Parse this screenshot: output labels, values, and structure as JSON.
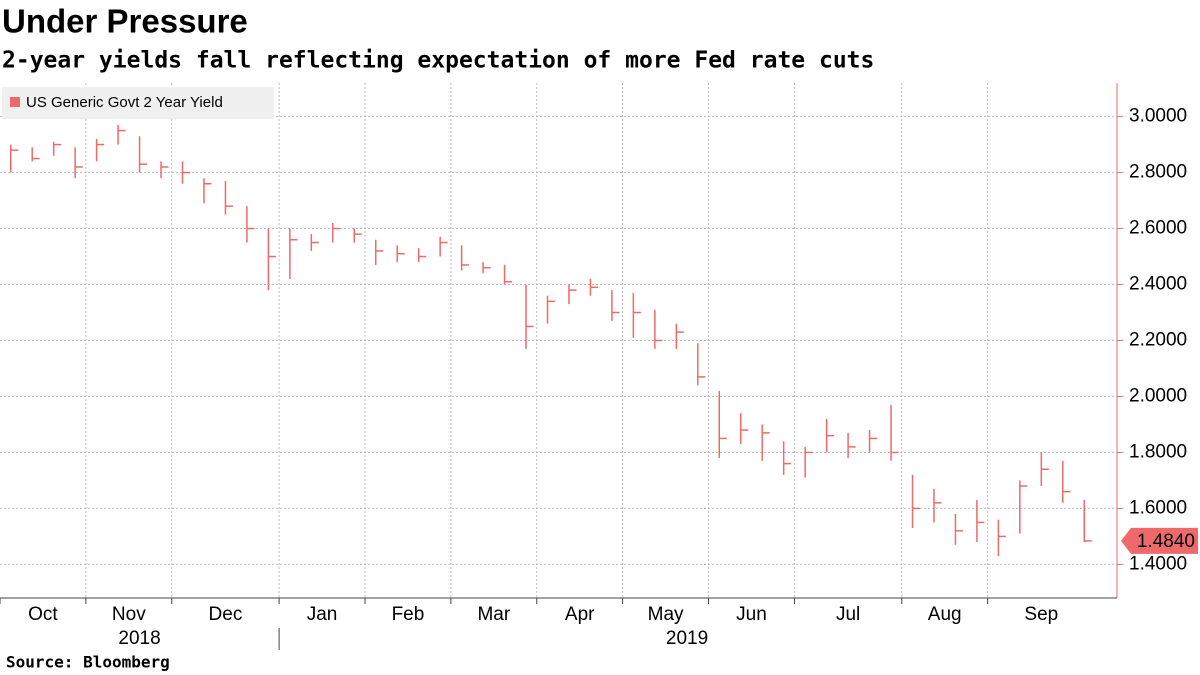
{
  "chart_data": {
    "type": "hlc",
    "title": "Under Pressure",
    "subtitle": "2-year yields fall reflecting expectation of more Fed rate cuts",
    "source": "Source: Bloomberg",
    "categories": [
      [
        "Oct",
        "2018"
      ],
      null,
      null,
      null,
      [
        "Nov",
        null
      ],
      null,
      null,
      null,
      [
        "Dec",
        null
      ],
      null,
      null,
      null,
      null,
      [
        "Jan",
        "2019"
      ],
      null,
      null,
      null,
      [
        "Feb",
        null
      ],
      null,
      null,
      null,
      [
        "Mar",
        null
      ],
      null,
      null,
      null,
      [
        "Apr",
        null
      ],
      null,
      null,
      null,
      [
        "May",
        null
      ],
      null,
      null,
      null,
      [
        "Jun",
        null
      ],
      null,
      null,
      null,
      [
        "Jul",
        null
      ],
      null,
      null,
      null,
      null,
      [
        "Aug",
        null
      ],
      null,
      null,
      null,
      [
        "Sep",
        null
      ],
      null,
      null,
      null,
      null
    ],
    "series": [
      {
        "name": "US Generic Govt 2 Year Yield",
        "color": "#ee6a6a",
        "high": [
          2.9,
          2.89,
          2.91,
          2.89,
          2.92,
          2.97,
          2.93,
          2.84,
          2.84,
          2.78,
          2.77,
          2.68,
          2.6,
          2.6,
          2.58,
          2.62,
          2.6,
          2.56,
          2.54,
          2.53,
          2.57,
          2.54,
          2.48,
          2.47,
          2.4,
          2.36,
          2.4,
          2.42,
          2.38,
          2.37,
          2.31,
          2.26,
          2.19,
          2.02,
          1.94,
          1.9,
          1.84,
          1.82,
          1.92,
          1.87,
          1.88,
          1.97,
          1.72,
          1.67,
          1.58,
          1.63,
          1.56,
          1.7,
          1.8,
          1.77,
          1.63
        ],
        "low": [
          2.8,
          2.84,
          2.86,
          2.78,
          2.84,
          2.9,
          2.8,
          2.78,
          2.76,
          2.69,
          2.65,
          2.55,
          2.38,
          2.42,
          2.52,
          2.55,
          2.55,
          2.47,
          2.48,
          2.48,
          2.5,
          2.45,
          2.44,
          2.4,
          2.17,
          2.26,
          2.33,
          2.36,
          2.27,
          2.21,
          2.17,
          2.17,
          2.04,
          1.78,
          1.83,
          1.77,
          1.72,
          1.71,
          1.8,
          1.78,
          1.8,
          1.77,
          1.53,
          1.55,
          1.47,
          1.48,
          1.43,
          1.51,
          1.68,
          1.62,
          1.48
        ],
        "close": [
          2.88,
          2.85,
          2.9,
          2.82,
          2.9,
          2.95,
          2.83,
          2.82,
          2.8,
          2.76,
          2.68,
          2.6,
          2.5,
          2.56,
          2.55,
          2.6,
          2.58,
          2.52,
          2.51,
          2.5,
          2.55,
          2.47,
          2.46,
          2.41,
          2.25,
          2.34,
          2.38,
          2.39,
          2.3,
          2.3,
          2.2,
          2.23,
          2.07,
          1.85,
          1.88,
          1.87,
          1.76,
          1.8,
          1.86,
          1.82,
          1.85,
          1.8,
          1.6,
          1.62,
          1.52,
          1.55,
          1.5,
          1.68,
          1.74,
          1.66,
          1.484
        ]
      }
    ],
    "last_label": {
      "value": 1.484,
      "label": "1.4840"
    },
    "ylim": [
      1.28,
      3.12
    ],
    "yticks": [
      {
        "value": 1.4,
        "label": "1.4000"
      },
      {
        "value": 1.6,
        "label": "1.6000"
      },
      {
        "value": 1.8,
        "label": "1.8000"
      },
      {
        "value": 2.0,
        "label": "2.0000"
      },
      {
        "value": 2.2,
        "label": "2.2000"
      },
      {
        "value": 2.4,
        "label": "2.4000"
      },
      {
        "value": 2.6,
        "label": "2.6000"
      },
      {
        "value": 2.8,
        "label": "2.8000"
      },
      {
        "value": 3.0,
        "label": "3.0000"
      }
    ],
    "grid": true,
    "legend": "top-left",
    "axis_color": "#ee6a6a"
  }
}
